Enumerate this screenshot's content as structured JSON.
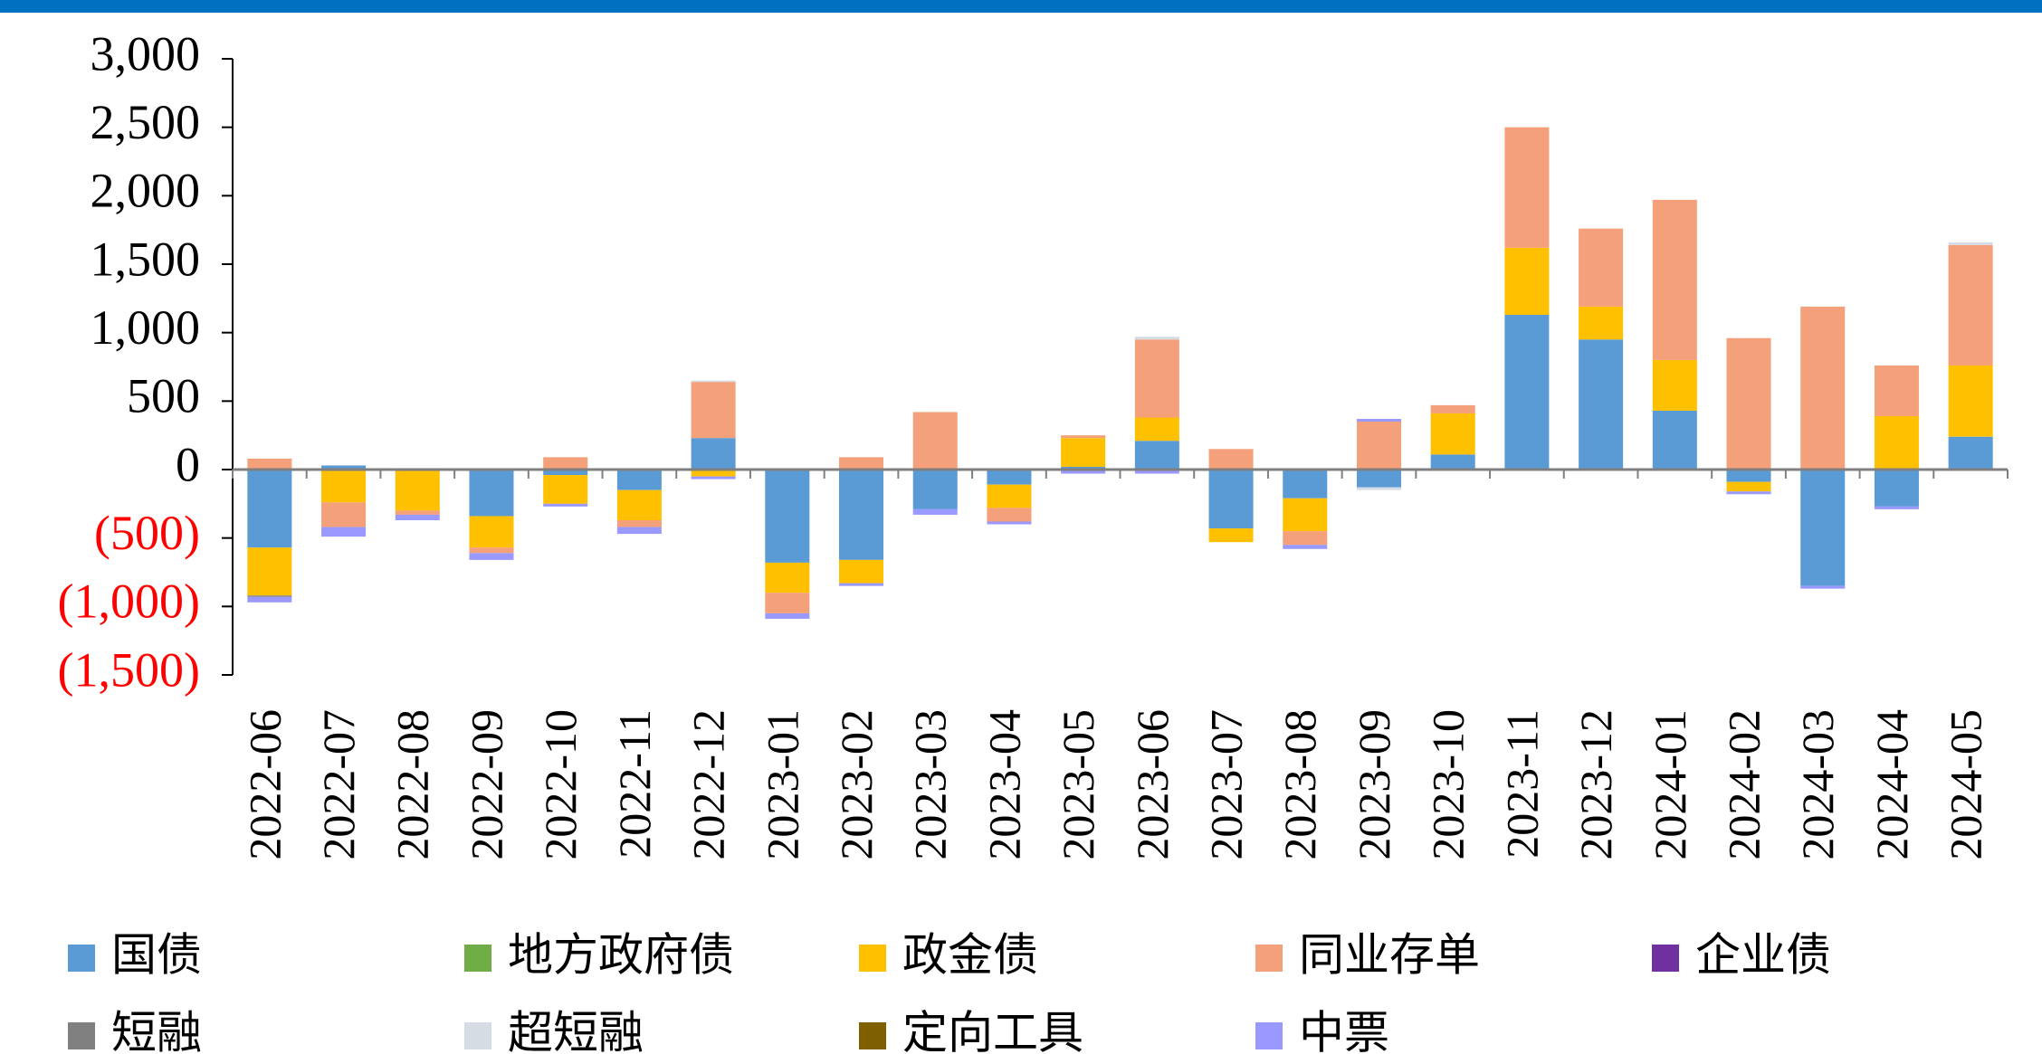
{
  "chart_data": {
    "type": "stacked_bar",
    "categories": [
      "2022-06",
      "2022-07",
      "2022-08",
      "2022-09",
      "2022-10",
      "2022-11",
      "2022-12",
      "2023-01",
      "2023-02",
      "2023-03",
      "2023-04",
      "2023-05",
      "2023-06",
      "2023-07",
      "2023-08",
      "2023-09",
      "2023-10",
      "2023-11",
      "2023-12",
      "2024-01",
      "2024-02",
      "2024-03",
      "2024-04",
      "2024-05"
    ],
    "series": [
      {
        "name": "国债",
        "color": "#5b9bd5",
        "values": [
          -570,
          30,
          10,
          -340,
          -40,
          -150,
          230,
          -680,
          -660,
          -290,
          -110,
          20,
          210,
          -430,
          -210,
          -130,
          110,
          1130,
          950,
          430,
          -90,
          -850,
          -270,
          240
        ]
      },
      {
        "name": "地方政府债",
        "color": "#70ad47",
        "values": [
          0,
          0,
          0,
          0,
          0,
          0,
          0,
          0,
          0,
          0,
          0,
          0,
          0,
          0,
          0,
          0,
          0,
          0,
          0,
          0,
          0,
          0,
          0,
          0
        ]
      },
      {
        "name": "政金债",
        "color": "#ffc000",
        "values": [
          -350,
          -240,
          -300,
          -230,
          -210,
          -220,
          -50,
          -220,
          -170,
          0,
          -170,
          210,
          170,
          -100,
          -240,
          0,
          300,
          490,
          240,
          370,
          -70,
          0,
          390,
          520
        ]
      },
      {
        "name": "同业存单",
        "color": "#f4a07a",
        "values": [
          80,
          -180,
          -30,
          -40,
          90,
          -50,
          410,
          -150,
          90,
          420,
          -100,
          20,
          570,
          150,
          -100,
          350,
          60,
          880,
          570,
          1170,
          960,
          1190,
          370,
          880
        ]
      },
      {
        "name": "企业债",
        "color": "#7030a0",
        "values": [
          0,
          0,
          0,
          0,
          0,
          0,
          0,
          0,
          0,
          0,
          0,
          0,
          0,
          0,
          0,
          0,
          0,
          0,
          0,
          0,
          0,
          0,
          0,
          0
        ]
      },
      {
        "name": "短融",
        "color": "#808080",
        "values": [
          -10,
          0,
          0,
          0,
          0,
          0,
          0,
          0,
          0,
          0,
          0,
          0,
          0,
          0,
          0,
          0,
          0,
          0,
          0,
          0,
          0,
          0,
          0,
          0
        ]
      },
      {
        "name": "超短融",
        "color": "#d6dce4",
        "values": [
          0,
          0,
          0,
          0,
          0,
          0,
          10,
          0,
          0,
          0,
          0,
          0,
          20,
          0,
          0,
          -20,
          0,
          0,
          0,
          0,
          0,
          0,
          0,
          20
        ]
      },
      {
        "name": "定向工具",
        "color": "#7f6000",
        "values": [
          0,
          0,
          0,
          0,
          0,
          0,
          0,
          0,
          0,
          0,
          0,
          0,
          0,
          0,
          0,
          0,
          0,
          0,
          0,
          0,
          0,
          0,
          0,
          0
        ]
      },
      {
        "name": "中票",
        "color": "#9999ff",
        "values": [
          -40,
          -70,
          -40,
          -50,
          -20,
          -50,
          -20,
          -40,
          -20,
          -40,
          -20,
          -30,
          -30,
          0,
          -30,
          20,
          0,
          0,
          0,
          0,
          -20,
          -20,
          -20,
          0
        ]
      }
    ],
    "ylim": [
      -1500,
      3000
    ],
    "yticks": [
      {
        "value": -1500,
        "label": "(1,500)"
      },
      {
        "value": -1000,
        "label": "(1,000)"
      },
      {
        "value": -500,
        "label": "(500)"
      },
      0,
      500,
      {
        "value": 1000,
        "label": "1,000"
      },
      {
        "value": 1500,
        "label": "1,500"
      },
      {
        "value": 2000,
        "label": "2,000"
      },
      {
        "value": 2500,
        "label": "2,500"
      },
      {
        "value": 3000,
        "label": "3,000"
      }
    ],
    "negative_tick_color": "#ff0000",
    "legend": "bottom"
  }
}
